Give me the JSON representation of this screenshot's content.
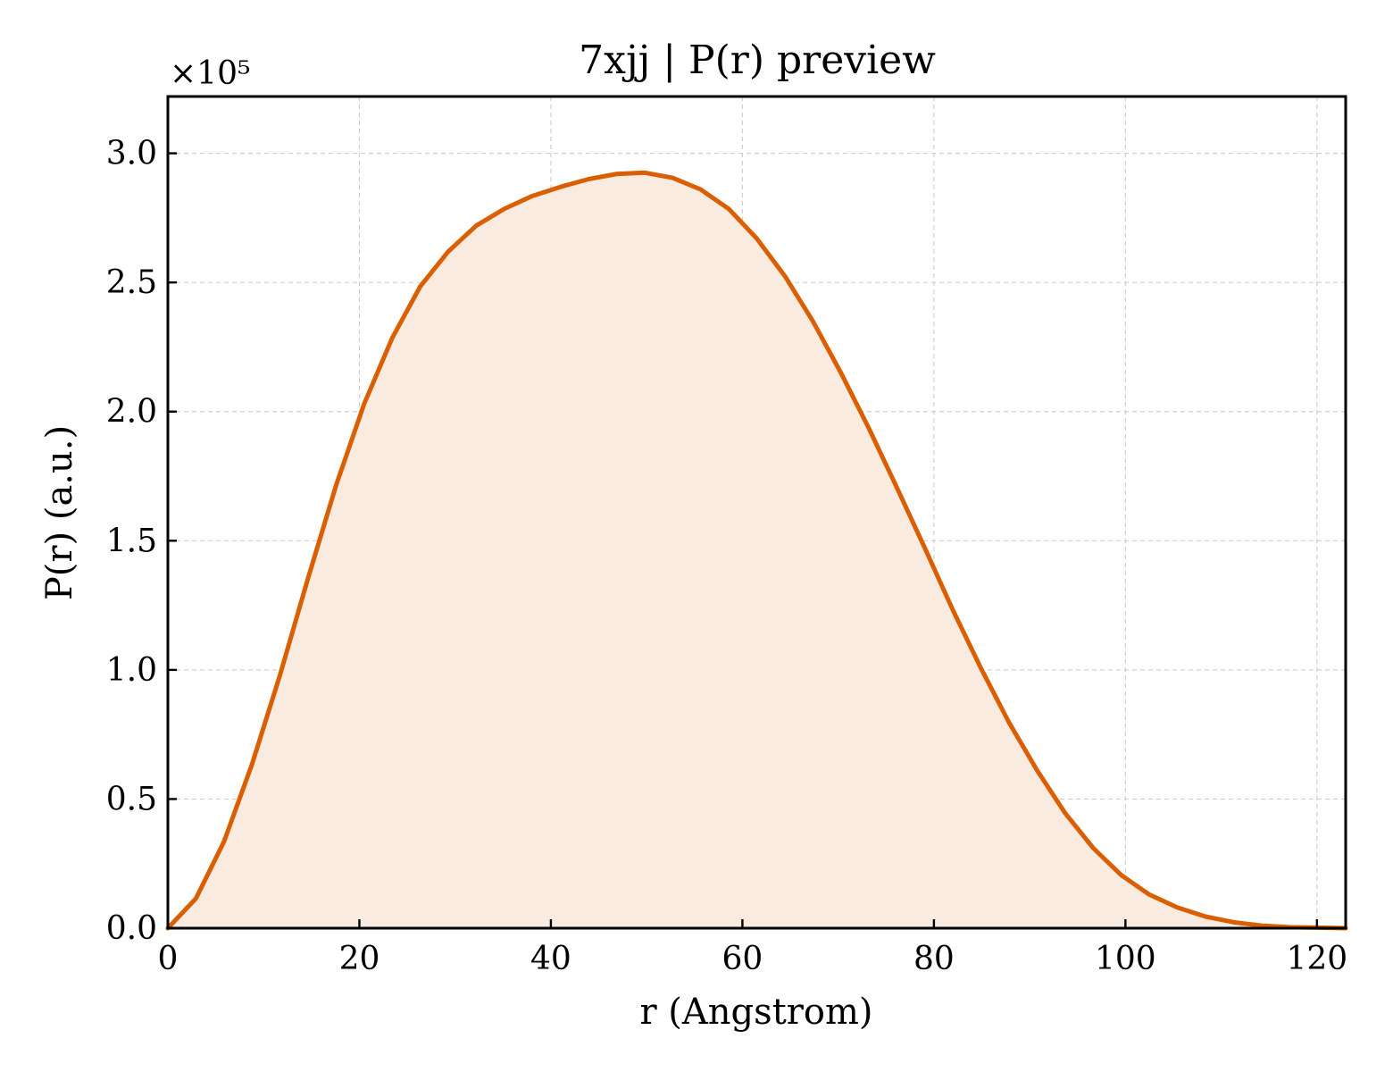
{
  "chart_data": {
    "type": "area",
    "title": "7xjj | P(r) preview",
    "xlabel": "r (Angstrom)",
    "ylabel": "P(r) (a.u.)",
    "y_scale_label": "×10⁵",
    "y_scale_factor": 100000,
    "xlim": [
      0,
      123
    ],
    "ylim": [
      0,
      322000
    ],
    "x_ticks": [
      0,
      20,
      40,
      60,
      80,
      100,
      120
    ],
    "x_tick_labels": [
      "0",
      "20",
      "40",
      "60",
      "80",
      "100",
      "120"
    ],
    "y_ticks": [
      0,
      50000,
      100000,
      150000,
      200000,
      250000,
      300000
    ],
    "y_tick_labels": [
      "0.0",
      "0.5",
      "1.0",
      "1.5",
      "2.0",
      "2.5",
      "3.0"
    ],
    "grid": true,
    "colors": {
      "line": "#d95f02",
      "fill": "#f9ebe0"
    },
    "series": [
      {
        "x": [
          0,
          2.93,
          5.86,
          8.79,
          11.71,
          14.64,
          17.57,
          20.5,
          23.43,
          26.36,
          29.29,
          32.21,
          35.14,
          38.07,
          41.0,
          43.93,
          46.86,
          49.79,
          52.71,
          55.64,
          58.57,
          61.5,
          64.43,
          67.36,
          70.29,
          73.21,
          76.14,
          79.07,
          82.0,
          84.93,
          87.86,
          90.79,
          93.71,
          96.64,
          99.57,
          102.5,
          105.43,
          108.36,
          111.29,
          114.21,
          117.14,
          120.07,
          123.0
        ],
        "y": [
          0,
          11500,
          33500,
          63500,
          98000,
          135500,
          171500,
          203000,
          228500,
          248500,
          262000,
          272000,
          278500,
          283500,
          287000,
          290000,
          292000,
          292500,
          290500,
          286000,
          278500,
          267000,
          252500,
          235000,
          215000,
          193500,
          170500,
          147000,
          123000,
          100500,
          79500,
          61000,
          44500,
          31000,
          20500,
          13000,
          8000,
          4500,
          2300,
          1000,
          400,
          200,
          0
        ]
      }
    ]
  }
}
